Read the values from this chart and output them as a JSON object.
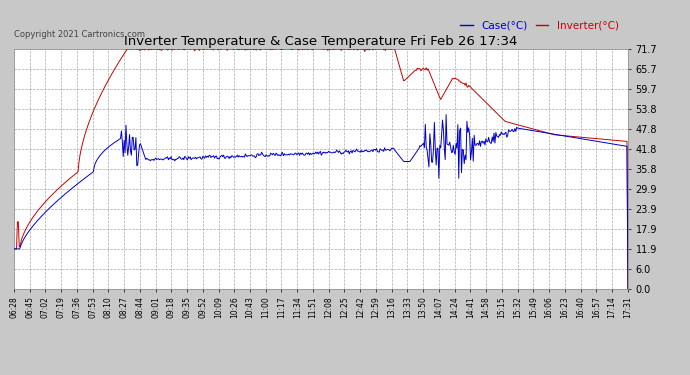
{
  "title": "Inverter Temperature & Case Temperature Fri Feb 26 17:34",
  "copyright": "Copyright 2021 Cartronics.com",
  "legend_case": "Case(°C)",
  "legend_inverter": "Inverter(°C)",
  "yticks": [
    0.0,
    6.0,
    11.9,
    17.9,
    23.9,
    29.9,
    35.8,
    41.8,
    47.8,
    53.8,
    59.7,
    65.7,
    71.7
  ],
  "xtick_labels": [
    "06:28",
    "06:45",
    "07:02",
    "07:19",
    "07:36",
    "07:53",
    "08:10",
    "08:27",
    "08:44",
    "09:01",
    "09:18",
    "09:35",
    "09:52",
    "10:09",
    "10:26",
    "10:43",
    "11:00",
    "11:17",
    "11:34",
    "11:51",
    "12:08",
    "12:25",
    "12:42",
    "12:59",
    "13:16",
    "13:33",
    "13:50",
    "14:07",
    "14:24",
    "14:41",
    "14:58",
    "15:15",
    "15:32",
    "15:49",
    "16:06",
    "16:23",
    "16:40",
    "16:57",
    "17:14",
    "17:31"
  ],
  "bg_color": "#c8c8c8",
  "plot_bg_color": "#ffffff",
  "case_color": "#0000cc",
  "inverter_color": "#cc0000",
  "grid_color": "#aaaaaa",
  "title_color": "#000000",
  "copyright_color": "#444444",
  "ymin": 0.0,
  "ymax": 71.7
}
